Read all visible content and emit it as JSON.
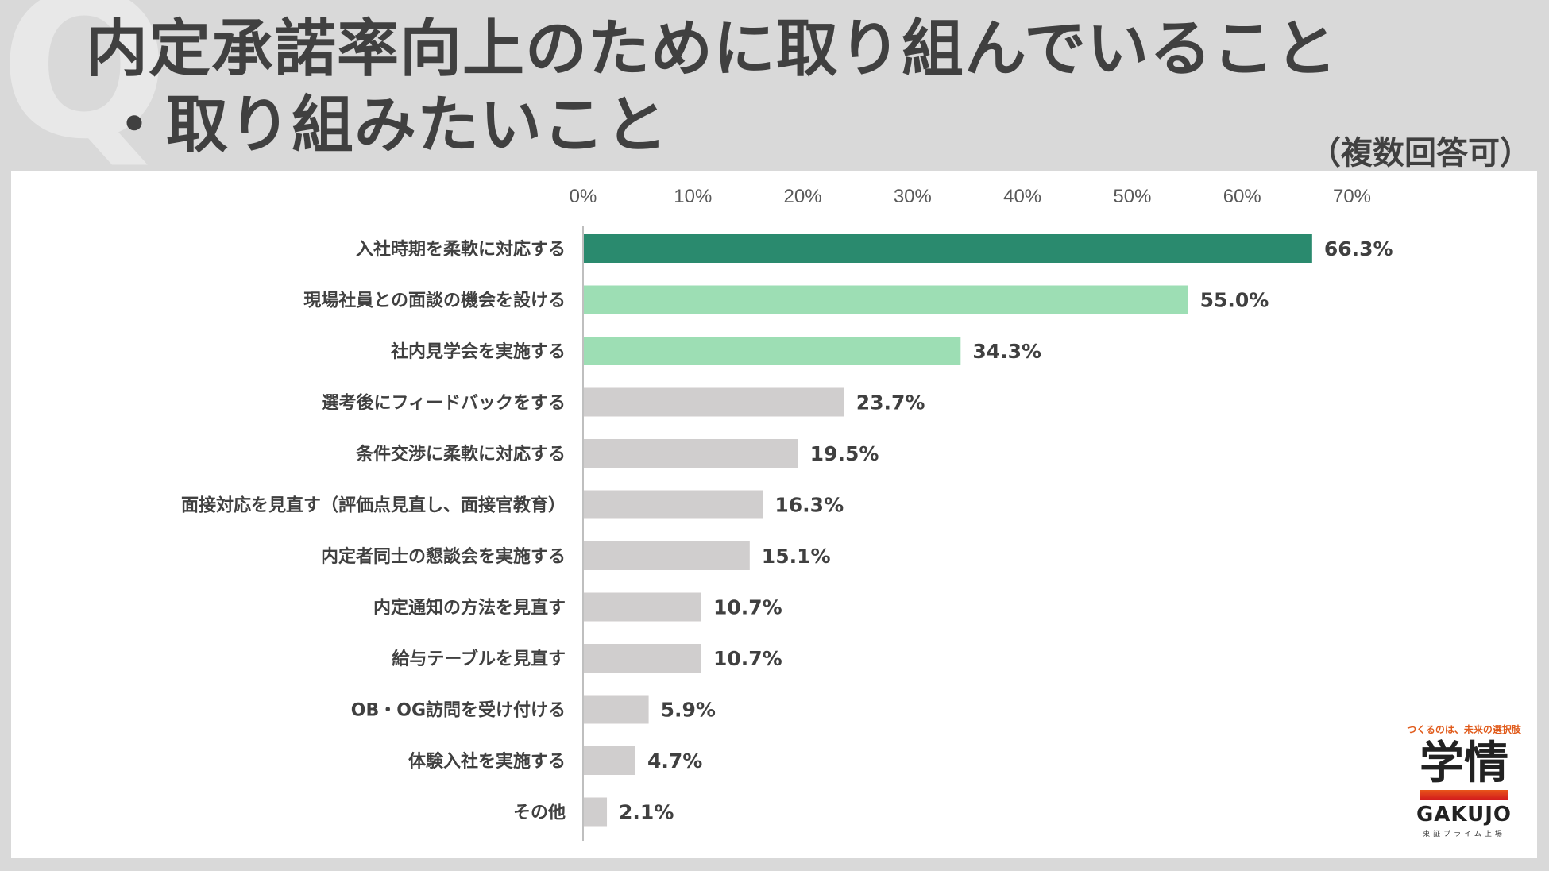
{
  "header": {
    "q_mark": "Q",
    "title_line1": "内定承諾率向上のために取り組んでいること",
    "title_line2": "・取り組みたいこと",
    "note": "（複数回答可）"
  },
  "logo": {
    "tagline": "つくるのは、未来の選択肢",
    "name": "学情",
    "english": "GAKUJO",
    "sub": "東証プライム上場"
  },
  "chart_data": {
    "type": "bar",
    "orientation": "horizontal",
    "categories": [
      "入社時期を柔軟に対応する",
      "現場社員との面談の機会を設ける",
      "社内見学会を実施する",
      "選考後にフィードバックをする",
      "条件交渉に柔軟に対応する",
      "面接対応を見直す（評価点見直し、面接官教育）",
      "内定者同士の懇談会を実施する",
      "内定通知の方法を見直す",
      "給与テーブルを見直す",
      "OB・OG訪問を受け付ける",
      "体験入社を実施する",
      "その他"
    ],
    "values": [
      66.3,
      55.0,
      34.3,
      23.7,
      19.5,
      16.3,
      15.1,
      10.7,
      10.7,
      5.9,
      4.7,
      2.1
    ],
    "value_labels": [
      "66.3%",
      "55.0%",
      "34.3%",
      "23.7%",
      "19.5%",
      "16.3%",
      "15.1%",
      "10.7%",
      "10.7%",
      "5.9%",
      "4.7%",
      "2.1%"
    ],
    "bar_colors": [
      "#2a8a6e",
      "#9ddeb4",
      "#9ddeb4",
      "#d0cece",
      "#d0cece",
      "#d0cece",
      "#d0cece",
      "#d0cece",
      "#d0cece",
      "#d0cece",
      "#d0cece",
      "#d0cece"
    ],
    "xlim": [
      0,
      70
    ],
    "x_ticks": [
      "0%",
      "10%",
      "20%",
      "30%",
      "40%",
      "50%",
      "60%",
      "70%"
    ],
    "tick_values": [
      0,
      10,
      20,
      30,
      40,
      50,
      60,
      70
    ],
    "axis_position": "top",
    "grid": false,
    "legend": false,
    "title": "",
    "xlabel": "",
    "ylabel": ""
  }
}
